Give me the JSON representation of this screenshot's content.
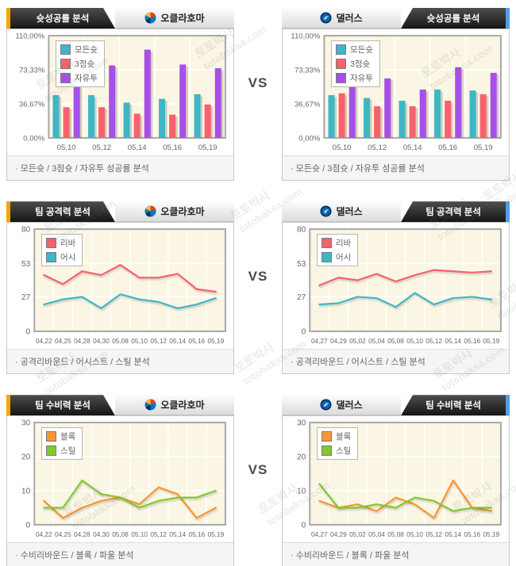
{
  "vs_label": "VS",
  "watermark": {
    "korean": "토토박사",
    "latin": "totobaksa.com"
  },
  "teams": {
    "left": {
      "name": "오클라호마"
    },
    "right": {
      "name": "댈러스"
    }
  },
  "sections": [
    {
      "title": "슛성공률 분석",
      "caption": "· 모든슛 / 3점슛 / 자유투 성공률 분석"
    },
    {
      "title": "팀 공격력 분석",
      "caption": "· 공격리바운드 / 어시스트 / 스틸 분석"
    },
    {
      "title": "팀 수비력 분석",
      "caption": "· 수비리바운드 / 블록 / 파울 분석"
    }
  ],
  "colors": {
    "accent_orange": "#f7a400",
    "accent_blue": "#4f9fe8",
    "tab_dark": "#2a2a2a",
    "plot_bg": "#fbf6e3",
    "teal": "#3db7c6",
    "red": "#f5626d",
    "purple": "#a650e8",
    "orange": "#fa9632",
    "green": "#82c832"
  },
  "chart_data": [
    {
      "type": "bar",
      "title": "슛성공률 분석 - 오클라호마",
      "categories": [
        "05,10",
        "05,12",
        "05,14",
        "05,16",
        "05,19"
      ],
      "series": [
        {
          "name": "모든슛",
          "color": "#3db7c6",
          "values": [
            46,
            46,
            38,
            42,
            47
          ]
        },
        {
          "name": "3점슛",
          "color": "#f5626d",
          "values": [
            33,
            33,
            26,
            25,
            36
          ]
        },
        {
          "name": "자유투",
          "color": "#a650e8",
          "values": [
            59,
            78,
            95,
            79,
            75
          ]
        }
      ],
      "ylim": [
        0,
        110
      ],
      "yticks": [
        {
          "v": 0,
          "label": "0,00%"
        },
        {
          "v": 36.67,
          "label": "36,67%"
        },
        {
          "v": 73.33,
          "label": "73,33%"
        },
        {
          "v": 110,
          "label": "110,00%"
        }
      ],
      "grid": true,
      "legend_position": "top-left"
    },
    {
      "type": "bar",
      "title": "슛성공률 분석 - 댈러스",
      "categories": [
        "05,10",
        "05,12",
        "05,14",
        "05,16",
        "05,19"
      ],
      "series": [
        {
          "name": "모든슛",
          "color": "#3db7c6",
          "values": [
            46,
            43,
            40,
            52,
            51
          ]
        },
        {
          "name": "3점슛",
          "color": "#f5626d",
          "values": [
            48,
            34,
            34,
            40,
            47
          ]
        },
        {
          "name": "자유투",
          "color": "#a650e8",
          "values": [
            58,
            64,
            52,
            76,
            70
          ]
        }
      ],
      "ylim": [
        0,
        110
      ],
      "yticks": [
        {
          "v": 0,
          "label": "0,00%"
        },
        {
          "v": 36.67,
          "label": "36,67%"
        },
        {
          "v": 73.33,
          "label": "73,33%"
        },
        {
          "v": 110,
          "label": "110,00%"
        }
      ],
      "grid": true,
      "legend_position": "top-left"
    },
    {
      "type": "line",
      "title": "팀 공격력 분석 - 오클라호마",
      "categories": [
        "04,22",
        "04,25",
        "04,28",
        "04,30",
        "05,08",
        "05,10",
        "05,12",
        "05,14",
        "05,16",
        "05,19"
      ],
      "series": [
        {
          "name": "리바",
          "color": "#f5626d",
          "values": [
            44,
            37,
            47,
            44,
            52,
            42,
            42,
            45,
            33,
            31
          ]
        },
        {
          "name": "어시",
          "color": "#3db7c6",
          "values": [
            21,
            25,
            27,
            18,
            29,
            25,
            23,
            18,
            21,
            26
          ]
        }
      ],
      "ylim": [
        0,
        80
      ],
      "yticks": [
        {
          "v": 0,
          "label": "0"
        },
        {
          "v": 27,
          "label": "27"
        },
        {
          "v": 53,
          "label": "53"
        },
        {
          "v": 80,
          "label": "80"
        }
      ],
      "grid": true,
      "legend_position": "top-left"
    },
    {
      "type": "line",
      "title": "팀 공격력 분석 - 댈러스",
      "categories": [
        "04,27",
        "04,29",
        "05,02",
        "05,04",
        "05,08",
        "05,10",
        "05,12",
        "05,14",
        "05,16",
        "05,19"
      ],
      "series": [
        {
          "name": "리바",
          "color": "#f5626d",
          "values": [
            36,
            42,
            40,
            45,
            39,
            44,
            48,
            47,
            46,
            47
          ]
        },
        {
          "name": "어시",
          "color": "#3db7c6",
          "values": [
            21,
            22,
            27,
            26,
            19,
            30,
            21,
            26,
            27,
            25
          ]
        }
      ],
      "ylim": [
        0,
        80
      ],
      "yticks": [
        {
          "v": 0,
          "label": "0"
        },
        {
          "v": 27,
          "label": "27"
        },
        {
          "v": 53,
          "label": "53"
        },
        {
          "v": 80,
          "label": "80"
        }
      ],
      "grid": true,
      "legend_position": "top-left"
    },
    {
      "type": "line",
      "title": "팀 수비력 분석 - 오클라호마",
      "categories": [
        "04,22",
        "04,25",
        "04,28",
        "04,30",
        "05,08",
        "05,10",
        "05,12",
        "05,14",
        "05,16",
        "05,19"
      ],
      "series": [
        {
          "name": "블록",
          "color": "#fa9632",
          "values": [
            7,
            2,
            5,
            7,
            8,
            6,
            11,
            9,
            2,
            5
          ]
        },
        {
          "name": "스틸",
          "color": "#82c832",
          "values": [
            5,
            5,
            13,
            9,
            8,
            5,
            7,
            8,
            8,
            10
          ]
        }
      ],
      "ylim": [
        0,
        30
      ],
      "yticks": [
        {
          "v": 0,
          "label": "0"
        },
        {
          "v": 10,
          "label": "10"
        },
        {
          "v": 20,
          "label": "20"
        },
        {
          "v": 30,
          "label": "30"
        }
      ],
      "grid": true,
      "legend_position": "top-left"
    },
    {
      "type": "line",
      "title": "팀 수비력 분석 - 댈러스",
      "categories": [
        "04,27",
        "04,29",
        "05,02",
        "05,04",
        "05,08",
        "05,10",
        "05,12",
        "05,14",
        "05,16",
        "05,19"
      ],
      "series": [
        {
          "name": "블록",
          "color": "#fa9632",
          "values": [
            7,
            5,
            6,
            4,
            8,
            6,
            2,
            13,
            5,
            4
          ]
        },
        {
          "name": "스틸",
          "color": "#82c832",
          "values": [
            12,
            5,
            5,
            6,
            5,
            8,
            7,
            4,
            5,
            5
          ]
        }
      ],
      "ylim": [
        0,
        30
      ],
      "yticks": [
        {
          "v": 0,
          "label": "0"
        },
        {
          "v": 10,
          "label": "10"
        },
        {
          "v": 20,
          "label": "20"
        },
        {
          "v": 30,
          "label": "30"
        }
      ],
      "grid": true,
      "legend_position": "top-left"
    }
  ]
}
